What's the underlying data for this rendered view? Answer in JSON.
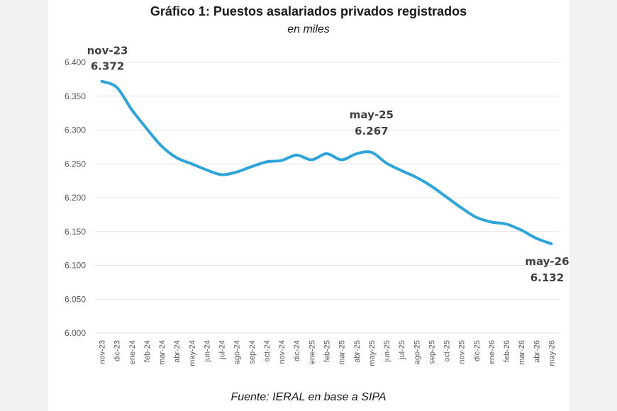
{
  "chart_data": {
    "type": "line",
    "title": "Gráfico 1: Puestos asalariados privados registrados",
    "subtitle": "en miles",
    "source": "Fuente: IERAL en base a SIPA",
    "xlabel": "",
    "ylabel": "",
    "ylim": [
      6000,
      6400
    ],
    "yticks": [
      6000,
      6050,
      6100,
      6150,
      6200,
      6250,
      6300,
      6350,
      6400
    ],
    "ytick_labels": [
      "6.000",
      "6.050",
      "6.100",
      "6.150",
      "6.200",
      "6.250",
      "6.300",
      "6.350",
      "6.400"
    ],
    "grid": true,
    "legend": "none",
    "line_color": "#2fa4d9",
    "categories": [
      "nov-23",
      "dic-23",
      "ene-24",
      "feb-24",
      "mar-24",
      "abr-24",
      "may-24",
      "jun-24",
      "jul-24",
      "ago-24",
      "sep-24",
      "oct-24",
      "nov-24",
      "dic-24",
      "ene-25",
      "feb-25",
      "mar-25",
      "abr-25",
      "may-25",
      "jun-25",
      "jul-25",
      "ago-25",
      "sep-25",
      "oct-25",
      "nov-25",
      "dic-25",
      "ene-26",
      "feb-26",
      "mar-26",
      "abr-26",
      "may-26"
    ],
    "series": [
      {
        "values": [
          6372,
          6363,
          6330,
          6302,
          6276,
          6259,
          6250,
          6241,
          6234,
          6238,
          6246,
          6253,
          6255,
          6263,
          6256,
          6265,
          6256,
          6265,
          6267,
          6251,
          6240,
          6230,
          6217,
          6201,
          6185,
          6171,
          6164,
          6161,
          6152,
          6140,
          6132
        ]
      }
    ],
    "annotations": [
      {
        "index": 0,
        "label": "nov-23",
        "value_label": "6.372"
      },
      {
        "index": 18,
        "label": "may-25",
        "value_label": "6.267"
      },
      {
        "index": 30,
        "label": "may-26",
        "value_label": "6.132"
      }
    ]
  }
}
